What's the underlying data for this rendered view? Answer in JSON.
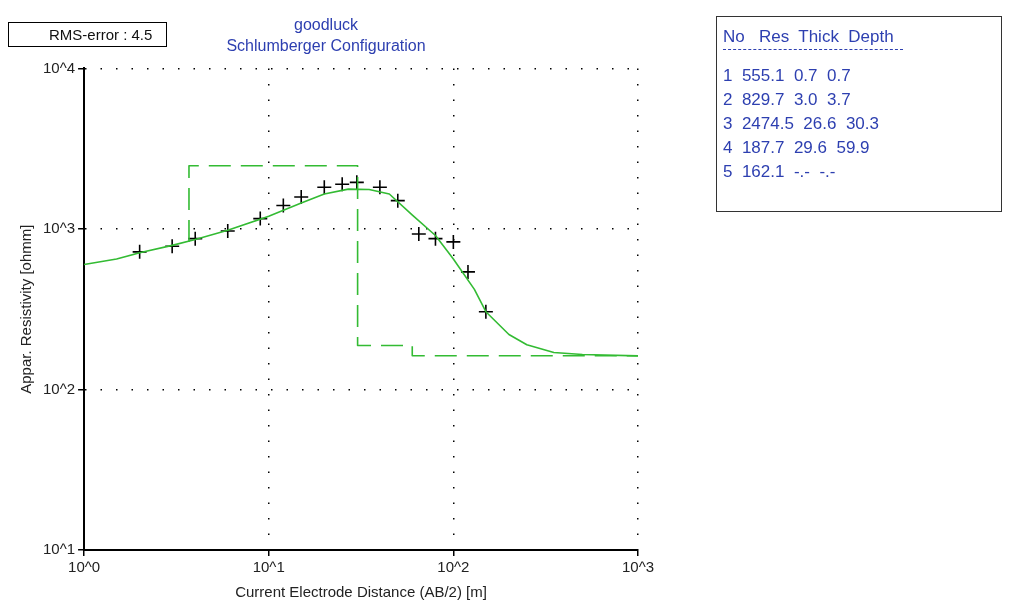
{
  "chart_data": {
    "type": "scatter",
    "title": "goodluck",
    "subtitle": "Schlumberger Configuration",
    "xlabel": "Current Electrode Distance (AB/2) [m]",
    "ylabel": "Appar. Resistivity [ohmm]",
    "log": "xy",
    "xlim": [
      1,
      1000
    ],
    "ylim": [
      10,
      10000
    ],
    "xticks": [
      {
        "value": 1,
        "label": "10^0"
      },
      {
        "value": 10,
        "label": "10^1"
      },
      {
        "value": 100,
        "label": "10^2"
      },
      {
        "value": 1000,
        "label": "10^3"
      }
    ],
    "yticks": [
      {
        "value": 10,
        "label": "10^1"
      },
      {
        "value": 100,
        "label": "10^2"
      },
      {
        "value": 1000,
        "label": "10^3"
      },
      {
        "value": 10000,
        "label": "10^4"
      }
    ],
    "grid": true,
    "legend": false,
    "series": [
      {
        "type": "line",
        "color": "#33bb33",
        "marker": "none",
        "line_style": "dashed",
        "x": [
          3.7,
          3.7,
          30.3,
          30.3,
          59.9,
          59.9,
          1000
        ],
        "values": [
          829.7,
          2474.5,
          2474.5,
          187.7,
          187.7,
          162.1,
          162.1
        ]
      },
      {
        "type": "line",
        "color": "#33bb33",
        "marker": "none",
        "line_style": "solid",
        "x": [
          1,
          1.5,
          2,
          3,
          4,
          6,
          10,
          15,
          20,
          27,
          35,
          45,
          60,
          80,
          100,
          130,
          150,
          200,
          250,
          350,
          500,
          1000
        ],
        "values": [
          600,
          650,
          710,
          790,
          860,
          980,
          1200,
          1450,
          1650,
          1770,
          1760,
          1650,
          1220,
          910,
          650,
          420,
          305,
          220,
          190,
          170,
          165,
          162
        ]
      },
      {
        "type": "scatter",
        "color": "#000000",
        "marker": "cross",
        "x": [
          2,
          3,
          4,
          6,
          9,
          12,
          15,
          20,
          25,
          30,
          40,
          50,
          65,
          80,
          100,
          120,
          150
        ],
        "values": [
          720,
          780,
          870,
          970,
          1160,
          1400,
          1580,
          1820,
          1900,
          1950,
          1820,
          1500,
          930,
          870,
          830,
          540,
          305
        ]
      }
    ],
    "annotations": [
      "RMS-error :  4.5",
      "No   Res  Thick  Depth",
      "1  555.1  0.7  0.7",
      "2  829.7  3.0  3.7",
      "3  2474.5  26.6  30.3",
      "4  187.7  29.6  59.9",
      "5  162.1  -.-  -.-"
    ]
  }
}
